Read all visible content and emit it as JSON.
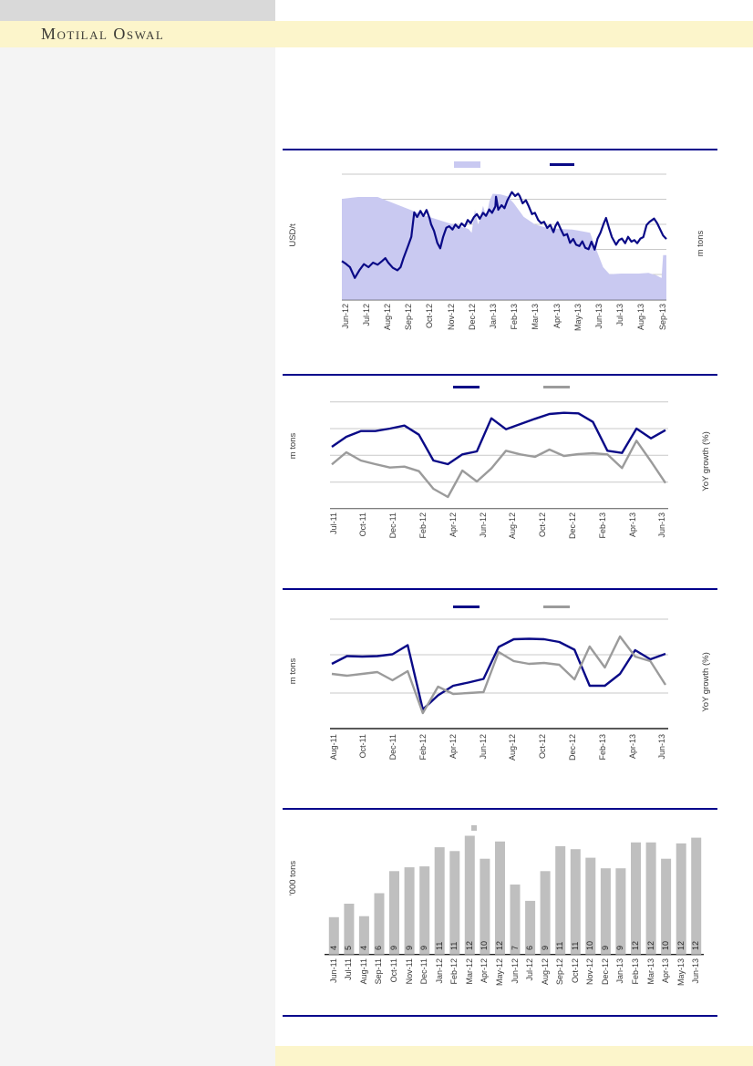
{
  "brand": {
    "logo_text": "Motilal Oswal"
  },
  "colors": {
    "navy": "#0a0a87",
    "lavender": "#c9c9f1",
    "gray": "#9b9b9b",
    "bar_fill": "#bfbfbf",
    "gridline": "#c9c9c9",
    "axis": "#333333",
    "separator": "#00008b",
    "band_yellow": "#fcf5cb",
    "header_block_gray": "#d9d9d9",
    "left_column_gray": "#f4f4f4"
  },
  "value_scale_note": "No numeric axis tick values are visible in the source; series values are relative heights (px above baseline) read from the plot.",
  "chart_data": [
    {
      "id": "price-vs-volume",
      "type": "area+line",
      "left_axis_label": "USD/t",
      "right_axis_label": "m tons",
      "legend": [
        "area-swatch",
        "line-swatch"
      ],
      "categories": [
        "Jun-12",
        "Jul-12",
        "Aug-12",
        "Sep-12",
        "Oct-12",
        "Nov-12",
        "Dec-12",
        "Jan-13",
        "Feb-13",
        "Mar-13",
        "Apr-13",
        "May-13",
        "Jun-13",
        "Jul-13",
        "Aug-13",
        "Sep-13"
      ],
      "series": [
        {
          "name": "volume-area",
          "style": "area",
          "color_key": "lavender",
          "points": [
            [
              0,
              79
            ],
            [
              5,
              80.5
            ],
            [
              11,
              80.5
            ],
            [
              18,
              73.5
            ],
            [
              25.5,
              66
            ],
            [
              33,
              60
            ],
            [
              39,
              55.5
            ],
            [
              40,
              52.5
            ],
            [
              41,
              70.5
            ],
            [
              42,
              58.5
            ],
            [
              43.5,
              73.5
            ],
            [
              44.5,
              65
            ],
            [
              45.5,
              77.5
            ],
            [
              46.5,
              83
            ],
            [
              49,
              82.5
            ],
            [
              51,
              81
            ],
            [
              53,
              75.5
            ],
            [
              56,
              65
            ],
            [
              59.5,
              59
            ],
            [
              63.5,
              56
            ],
            [
              71,
              55
            ],
            [
              76.5,
              52.5
            ],
            [
              78.5,
              38.5
            ],
            [
              80.5,
              25.5
            ],
            [
              82.5,
              20
            ],
            [
              86,
              20.5
            ],
            [
              91.5,
              20.5
            ],
            [
              94.5,
              21
            ],
            [
              97,
              19
            ],
            [
              98.5,
              17
            ],
            [
              99,
              35
            ],
            [
              100,
              35
            ]
          ]
        },
        {
          "name": "price-line",
          "style": "line",
          "color_key": "navy",
          "points": [
            [
              0,
              30.3
            ],
            [
              1.1,
              28.4
            ],
            [
              2.5,
              25.5
            ],
            [
              4,
              17.1
            ],
            [
              5.4,
              23.1
            ],
            [
              6.8,
              27.9
            ],
            [
              8.2,
              25.5
            ],
            [
              9.6,
              29.1
            ],
            [
              11,
              27.4
            ],
            [
              12.4,
              30.3
            ],
            [
              13.4,
              32.6
            ],
            [
              14.3,
              29.1
            ],
            [
              15.7,
              25
            ],
            [
              17.1,
              23.1
            ],
            [
              18.1,
              25.5
            ],
            [
              19,
              32.6
            ],
            [
              20.4,
              42.1
            ],
            [
              21.4,
              49.3
            ],
            [
              22.3,
              68.4
            ],
            [
              23.2,
              64.8
            ],
            [
              24.2,
              69.6
            ],
            [
              25.1,
              65.5
            ],
            [
              26.1,
              70.3
            ],
            [
              27,
              64.1
            ],
            [
              27.5,
              59.1
            ],
            [
              28.4,
              53.9
            ],
            [
              29.4,
              44.6
            ],
            [
              30.3,
              40.3
            ],
            [
              31.2,
              49.3
            ],
            [
              32.2,
              56.4
            ],
            [
              33.1,
              57.6
            ],
            [
              34.1,
              55
            ],
            [
              35,
              58.9
            ],
            [
              36,
              56.2
            ],
            [
              36.9,
              59.8
            ],
            [
              37.9,
              57.4
            ],
            [
              38.8,
              62.4
            ],
            [
              39.7,
              60
            ],
            [
              40.7,
              64.8
            ],
            [
              41.6,
              67.1
            ],
            [
              42.5,
              63.4
            ],
            [
              43.5,
              68.1
            ],
            [
              44.4,
              65.7
            ],
            [
              45.4,
              70.7
            ],
            [
              46.3,
              68.1
            ],
            [
              47.3,
              73.1
            ],
            [
              47.5,
              80.7
            ],
            [
              48.2,
              70.5
            ],
            [
              49.2,
              74.1
            ],
            [
              50.1,
              71.7
            ],
            [
              51,
              77.9
            ],
            [
              52,
              82.6
            ],
            [
              52.4,
              84.3
            ],
            [
              53.4,
              81.2
            ],
            [
              54.3,
              83.1
            ],
            [
              54.8,
              81.2
            ],
            [
              55.7,
              75.5
            ],
            [
              56.7,
              77.9
            ],
            [
              57.6,
              73.1
            ],
            [
              58.6,
              67.1
            ],
            [
              59.5,
              68.1
            ],
            [
              60.5,
              62.4
            ],
            [
              61.4,
              60
            ],
            [
              62.3,
              61
            ],
            [
              63.3,
              56.2
            ],
            [
              64.2,
              58.6
            ],
            [
              65.2,
              52.9
            ],
            [
              65.8,
              57.6
            ],
            [
              66.5,
              60.7
            ],
            [
              67.5,
              55
            ],
            [
              68.4,
              50.3
            ],
            [
              69.4,
              51.4
            ],
            [
              70.3,
              44.6
            ],
            [
              71.3,
              47.6
            ],
            [
              72.2,
              43.1
            ],
            [
              73.2,
              42.1
            ],
            [
              74.1,
              45.7
            ],
            [
              75,
              40.7
            ],
            [
              76,
              39.6
            ],
            [
              76.9,
              45.5
            ],
            [
              77.9,
              39.3
            ],
            [
              78.8,
              47.9
            ],
            [
              79.7,
              52.6
            ],
            [
              80.7,
              59.8
            ],
            [
              81.4,
              64.1
            ],
            [
              82.3,
              56.2
            ],
            [
              83.2,
              49.1
            ],
            [
              84.5,
              43.1
            ],
            [
              85.4,
              46.7
            ],
            [
              86.3,
              47.9
            ],
            [
              87.3,
              44.3
            ],
            [
              88.2,
              49.3
            ],
            [
              89.2,
              45.5
            ],
            [
              90.1,
              46.7
            ],
            [
              91,
              44.3
            ],
            [
              92,
              47.9
            ],
            [
              92.9,
              49.1
            ],
            [
              93.9,
              58.6
            ],
            [
              94.8,
              61
            ],
            [
              96.2,
              63.6
            ],
            [
              97.2,
              59.8
            ],
            [
              98.1,
              55
            ],
            [
              99,
              50.3
            ],
            [
              100,
              47.6
            ]
          ]
        }
      ]
    },
    {
      "id": "line-chart-two",
      "type": "line",
      "left_axis_label": "m tons",
      "right_axis_label": "YoY growth (%)",
      "legend": [
        "navy-line-swatch",
        "gray-line-swatch"
      ],
      "categories": [
        "Jul-11",
        "Oct-11",
        "Dec-11",
        "Feb-12",
        "Apr-12",
        "Jun-12",
        "Aug-12",
        "Oct-12",
        "Dec-12",
        "Feb-13",
        "Apr-13",
        "Jun-13"
      ],
      "series": [
        {
          "name": "navy-series",
          "color_key": "navy",
          "values": [
            67.7,
            78.7,
            85,
            85,
            87.7,
            91,
            81,
            52.7,
            48.7,
            59.4,
            62.7,
            99,
            87,
            92.7,
            98.4,
            103.7,
            105,
            104.4,
            95,
            63.4,
            61,
            87.7,
            77,
            86
          ]
        },
        {
          "name": "gray-series",
          "color_key": "gray",
          "values": [
            48.4,
            61.7,
            52.7,
            48.7,
            45,
            46,
            41,
            21.7,
            12.7,
            41.7,
            29.7,
            44,
            63.4,
            59.4,
            56.7,
            64.7,
            57.7,
            59.7,
            60.7,
            59.4,
            44.4,
            74.4,
            51.7,
            28
          ]
        }
      ]
    },
    {
      "id": "line-chart-three",
      "type": "line",
      "left_axis_label": "m tons",
      "right_axis_label": "YoY growth (%)",
      "legend": [
        "navy-line-swatch",
        "gray-line-swatch"
      ],
      "categories": [
        "Aug-11",
        "Oct-11",
        "Dec-11",
        "Feb-12",
        "Apr-12",
        "Jun-12",
        "Aug-12",
        "Oct-12",
        "Dec-12",
        "Feb-13",
        "Apr-13",
        "Jun-13"
      ],
      "series": [
        {
          "name": "navy-series",
          "color_key": "navy",
          "values": [
            71,
            79.5,
            79,
            79.5,
            81.5,
            91.5,
            21,
            36.5,
            47,
            50.5,
            54.5,
            89.5,
            98,
            98.5,
            98,
            95,
            86.5,
            47,
            47,
            60,
            86,
            76,
            82
          ]
        },
        {
          "name": "gray-series",
          "color_key": "gray",
          "values": [
            60,
            58,
            60,
            62,
            53,
            63,
            17,
            46,
            38,
            39,
            40,
            84,
            74,
            71,
            72,
            70,
            54,
            90,
            67,
            101,
            79,
            74,
            48
          ]
        }
      ]
    },
    {
      "id": "bar-chart",
      "type": "bar",
      "left_axis_label": "'000 tons",
      "legend": [
        "bar-swatch"
      ],
      "categories": [
        "Jun-11",
        "Jul-11",
        "Aug-11",
        "Sep-11",
        "Oct-11",
        "Nov-11",
        "Dec-11",
        "Jan-12",
        "Feb-12",
        "Mar-12",
        "Apr-12",
        "May-12",
        "Jun-12",
        "Jul-12",
        "Aug-12",
        "Sep-12",
        "Oct-12",
        "Nov-12",
        "Dec-12",
        "Jan-13",
        "Feb-13",
        "Mar-13",
        "Apr-13",
        "May-13",
        "Jun-13"
      ],
      "values": [
        3.9,
        5.3,
        4.0,
        6.4,
        8.7,
        9.1,
        9.2,
        11.2,
        10.8,
        12.4,
        10.0,
        11.8,
        7.3,
        5.6,
        8.7,
        11.3,
        11.0,
        10.1,
        9.0,
        9.0,
        11.7,
        11.7,
        10.0,
        11.6,
        12.2
      ],
      "bar_labels": [
        "4",
        "5",
        "4",
        "6",
        "9",
        "9",
        "9",
        "11",
        "11",
        "12",
        "10",
        "12",
        "7",
        "6",
        "9",
        "11",
        "11",
        "10",
        "9",
        "9",
        "12",
        "12",
        "10",
        "12",
        "12"
      ]
    }
  ]
}
